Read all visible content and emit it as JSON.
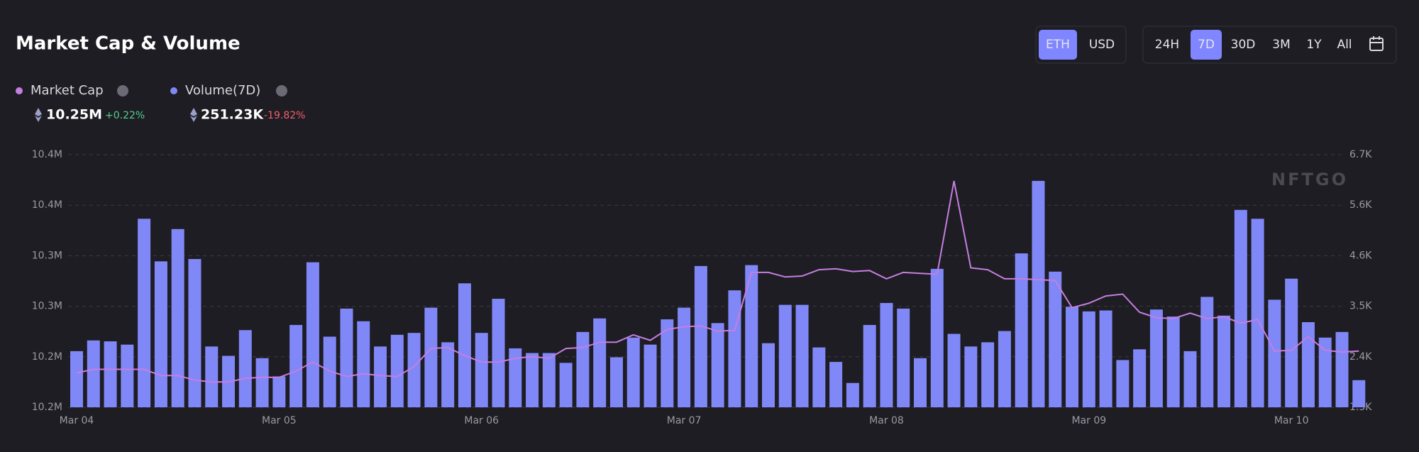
{
  "title": "Market Cap & Volume",
  "currency_toggle": [
    "ETH",
    "USD"
  ],
  "selected_currency": "ETH",
  "range_toggle": [
    "24H",
    "7D",
    "30D",
    "3M",
    "1Y",
    "All"
  ],
  "selected_range": "7D",
  "legend_stats": [
    {
      "value": "10.25M",
      "change": "+0.22%",
      "change_color": "#4fd18b"
    },
    {
      "value": "251.23K",
      "change": "-19.82%",
      "change_color": "#f0606a"
    }
  ],
  "watermark": "NFTGO",
  "chart_data": {
    "type": "bar",
    "categories": [
      "Mar 04",
      null,
      null,
      null,
      null,
      null,
      null,
      null,
      null,
      null,
      null,
      null,
      "Mar 05",
      null,
      null,
      null,
      null,
      null,
      null,
      null,
      null,
      null,
      null,
      null,
      "Mar 06",
      null,
      null,
      null,
      null,
      null,
      null,
      null,
      null,
      null,
      null,
      null,
      "Mar 07",
      null,
      null,
      null,
      null,
      null,
      null,
      null,
      null,
      null,
      null,
      null,
      "Mar 08",
      null,
      null,
      null,
      null,
      null,
      null,
      null,
      null,
      null,
      null,
      null,
      "Mar 09",
      null,
      null,
      null,
      null,
      null,
      null,
      null,
      null,
      null,
      null,
      null,
      "Mar 10",
      null,
      null,
      null,
      null
    ],
    "series": [
      {
        "name": "Market Cap",
        "type": "line",
        "color": "#c67ee0",
        "values": [
          10184000,
          10187600,
          10187600,
          10187600,
          10187600,
          10181400,
          10181400,
          10176900,
          10175100,
          10175100,
          10178700,
          10179600,
          10179600,
          10185800,
          10194800,
          10185800,
          10180500,
          10183200,
          10181400,
          10180500,
          10190300,
          10208200,
          10209100,
          10201100,
          10194800,
          10194800,
          10198400,
          10200200,
          10198400,
          10208200,
          10209100,
          10214500,
          10214500,
          10221700,
          10216300,
          10227100,
          10229700,
          10230600,
          10225300,
          10226200,
          10283500,
          10283500,
          10279000,
          10279900,
          10286200,
          10287100,
          10284400,
          10285300,
          10277200,
          10283500,
          10282600,
          10281700,
          10374000,
          10288000,
          10286200,
          10277200,
          10277200,
          10276300,
          10275400,
          10248600,
          10253000,
          10260200,
          10262000,
          10244100,
          10238700,
          10237800,
          10243200,
          10237800,
          10239600,
          10233300,
          10236900,
          10205600,
          10206400,
          10219900,
          10206400,
          10204700,
          10205600
        ]
      },
      {
        "name": "Volume(7D)",
        "type": "bar",
        "color": "#8088f7",
        "axis": "y2",
        "values": [
          2520,
          2750,
          2730,
          2660,
          5350,
          4440,
          5130,
          4490,
          2620,
          2420,
          2970,
          2370,
          1980,
          3080,
          4420,
          2830,
          3430,
          3160,
          2620,
          2870,
          2910,
          3450,
          2710,
          3970,
          2910,
          3640,
          2580,
          2480,
          2480,
          2270,
          2930,
          3220,
          2390,
          2810,
          2660,
          3200,
          3450,
          4340,
          3120,
          3820,
          4360,
          2690,
          3510,
          3510,
          2600,
          2290,
          1840,
          3080,
          3550,
          3430,
          2370,
          4280,
          2890,
          2620,
          2710,
          2950,
          4610,
          6160,
          4220,
          3470,
          3370,
          3390,
          2330,
          2560,
          3410,
          3260,
          2520,
          3680,
          3280,
          5540,
          5350,
          3620,
          4070,
          3140,
          2810,
          2930,
          1900
        ]
      }
    ],
    "ylim": [
      10150000,
      10400000
    ],
    "yticks": [
      {
        "value": 10150000,
        "label": "10.2M"
      },
      {
        "value": 10200000,
        "label": "10.2M"
      },
      {
        "value": 10250000,
        "label": "10.3M"
      },
      {
        "value": 10300000,
        "label": "10.3M"
      },
      {
        "value": 10350000,
        "label": "10.4M"
      },
      {
        "value": 10400000,
        "label": "10.4M"
      }
    ],
    "y2lim": [
      1320,
      6720
    ],
    "y2ticks": [
      {
        "value": 1320,
        "label": "1.3K"
      },
      {
        "value": 2400,
        "label": "2.4K"
      },
      {
        "value": 3480,
        "label": "3.5K"
      },
      {
        "value": 4560,
        "label": "4.6K"
      },
      {
        "value": 5640,
        "label": "5.6K"
      },
      {
        "value": 6720,
        "label": "6.7K"
      }
    ],
    "grid": true
  }
}
